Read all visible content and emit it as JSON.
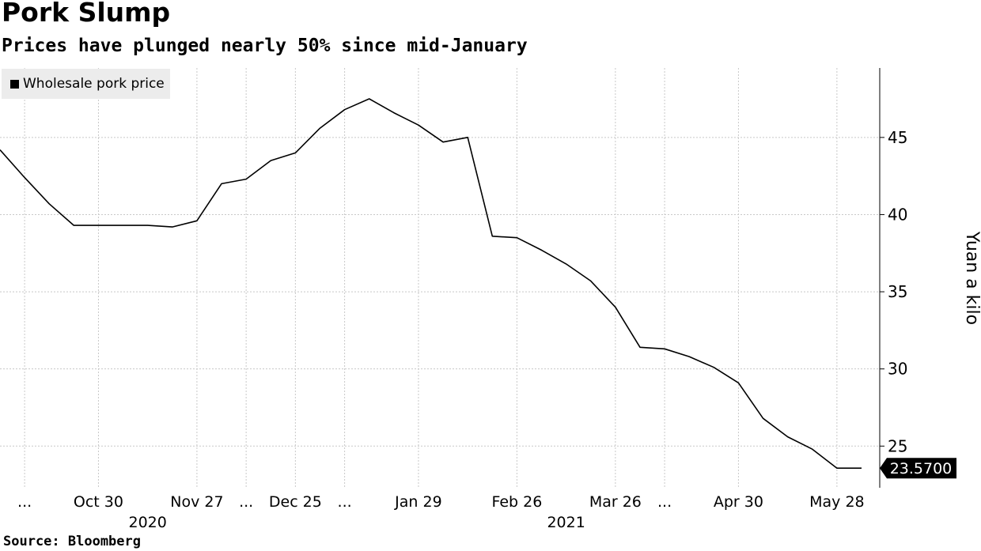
{
  "title": "Pork Slump",
  "subtitle": "Prices have plunged nearly 50% since mid-January",
  "source": "Source: Bloomberg",
  "chart_data": {
    "type": "line",
    "title": "Pork Slump",
    "subtitle": "Prices have plunged nearly 50% since mid-January",
    "ylabel": "Yuan a kilo",
    "ylim": [
      22.3,
      49.5
    ],
    "yticks": [
      25,
      30,
      35,
      40,
      45
    ],
    "grid": true,
    "legend": {
      "placement": "top-left",
      "entries": [
        "Wholesale pork price"
      ]
    },
    "x_tick_labels": [
      {
        "label": "...",
        "x": "2020-10-09"
      },
      {
        "label": "Oct 30",
        "x": "2020-10-30"
      },
      {
        "label": "Nov 27",
        "x": "2020-11-27"
      },
      {
        "label": "...",
        "x": "2020-12-11"
      },
      {
        "label": "Dec 25",
        "x": "2020-12-25"
      },
      {
        "label": "...",
        "x": "2021-01-08"
      },
      {
        "label": "Jan 29",
        "x": "2021-01-29"
      },
      {
        "label": "Feb 26",
        "x": "2021-02-26"
      },
      {
        "label": "Mar 26",
        "x": "2021-03-26"
      },
      {
        "label": "...",
        "x": "2021-04-09"
      },
      {
        "label": "Apr 30",
        "x": "2021-04-30"
      },
      {
        "label": "May 28",
        "x": "2021-05-28"
      }
    ],
    "year_labels": [
      {
        "label": "2020",
        "x": "2020-11-13"
      },
      {
        "label": "2021",
        "x": "2021-03-12"
      }
    ],
    "x_grid": [
      "2020-10-09",
      "2020-10-30",
      "2020-11-27",
      "2020-12-11",
      "2020-12-25",
      "2021-01-08",
      "2021-01-29",
      "2021-02-26",
      "2021-03-26",
      "2021-04-09",
      "2021-04-30",
      "2021-05-28"
    ],
    "series": [
      {
        "name": "Wholesale pork price",
        "x": [
          "2020-10-02",
          "2020-10-09",
          "2020-10-16",
          "2020-10-23",
          "2020-10-30",
          "2020-11-06",
          "2020-11-13",
          "2020-11-20",
          "2020-11-27",
          "2020-12-04",
          "2020-12-11",
          "2020-12-18",
          "2020-12-25",
          "2021-01-01",
          "2021-01-08",
          "2021-01-15",
          "2021-01-22",
          "2021-01-29",
          "2021-02-05",
          "2021-02-12",
          "2021-02-19",
          "2021-02-26",
          "2021-03-05",
          "2021-03-12",
          "2021-03-19",
          "2021-03-26",
          "2021-04-02",
          "2021-04-09",
          "2021-04-16",
          "2021-04-23",
          "2021-04-30",
          "2021-05-07",
          "2021-05-14",
          "2021-05-21",
          "2021-05-28",
          "2021-06-04"
        ],
        "values": [
          44.2,
          42.4,
          40.7,
          39.3,
          39.3,
          39.3,
          39.3,
          39.2,
          39.6,
          42.0,
          42.3,
          43.5,
          44.0,
          45.6,
          46.8,
          47.5,
          46.6,
          45.8,
          44.7,
          45.0,
          38.6,
          38.5,
          37.7,
          36.8,
          35.7,
          34.0,
          31.4,
          31.3,
          30.8,
          30.1,
          29.1,
          26.8,
          25.6,
          24.8,
          23.57,
          23.57
        ],
        "color": "#000000"
      }
    ],
    "last_value_label": "23.5700"
  }
}
